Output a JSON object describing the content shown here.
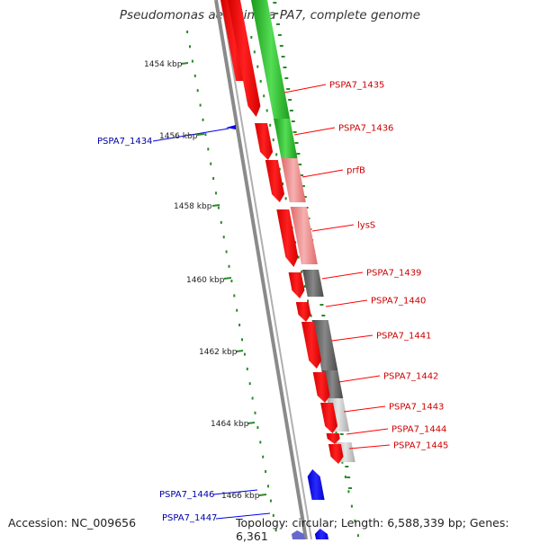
{
  "title": "Pseudomonas aeruginosa PA7, complete genome",
  "accession": "Accession: NC_009656",
  "topology": "Topology: circular; Length: 6,588,339 bp; Genes: 6,361",
  "colors": {
    "forward_gene": "#ff0000",
    "reverse_gene": "#0000ee",
    "backbone": "#888888",
    "tick": "#2a8a2a",
    "cds_green": "#22bb22",
    "cds_salmon": "#f08080",
    "cds_gray": "#666666",
    "cds_lightgray": "#bbbbbb"
  },
  "kbp_ticks": [
    "1454 kbp",
    "1456 kbp",
    "1458 kbp",
    "1460 kbp",
    "1462 kbp",
    "1464 kbp",
    "1466 kbp"
  ],
  "genes_forward": [
    "PSPA7_1435",
    "PSPA7_1436",
    "prfB",
    "lysS",
    "PSPA7_1439",
    "PSPA7_1440",
    "PSPA7_1441",
    "PSPA7_1442",
    "PSPA7_1443",
    "PSPA7_1444",
    "PSPA7_1445"
  ],
  "genes_reverse": [
    "PSPA7_1434",
    "PSPA7_1446",
    "PSPA7_1447"
  ]
}
